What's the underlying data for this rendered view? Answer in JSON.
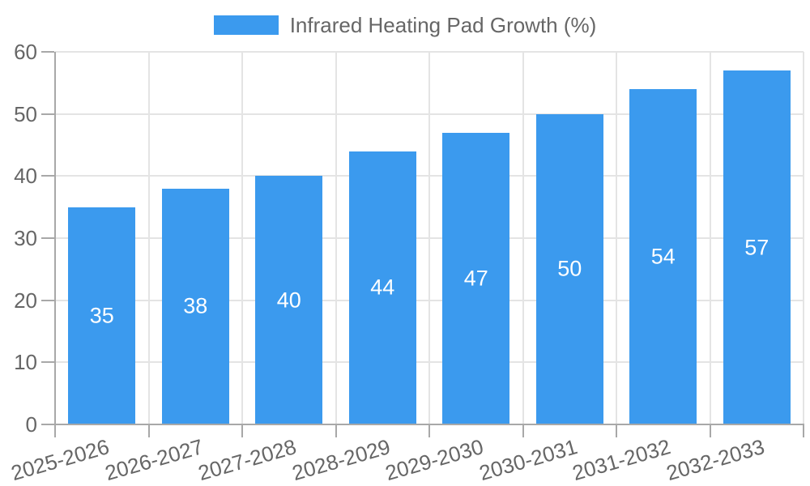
{
  "legend": {
    "label": "Infrared Heating Pad Growth (%)"
  },
  "chart_data": {
    "type": "bar",
    "title": "",
    "xlabel": "",
    "ylabel": "",
    "categories": [
      "2025-2026",
      "2026-2027",
      "2027-2028",
      "2028-2029",
      "2029-2030",
      "2030-2031",
      "2031-2032",
      "2032-2033"
    ],
    "series": [
      {
        "name": "Infrared Heating Pad Growth (%)",
        "values": [
          35,
          38,
          40,
          44,
          47,
          50,
          54,
          57
        ]
      }
    ],
    "bar_value_labels": [
      "35",
      "38",
      "40",
      "44",
      "47",
      "50",
      "54",
      "57"
    ],
    "ylim": [
      0,
      60
    ],
    "ytick_step": 10,
    "ytick_labels": [
      "0",
      "10",
      "20",
      "30",
      "40",
      "50",
      "60"
    ],
    "grid": true,
    "legend_position": "top"
  },
  "colors": {
    "bar": "#3B9AEE",
    "grid": "#E4E4E4",
    "axis": "#A8A8A8",
    "text": "#666666",
    "bar_label_text": "#FFFFFF",
    "background": "#FFFFFF"
  }
}
